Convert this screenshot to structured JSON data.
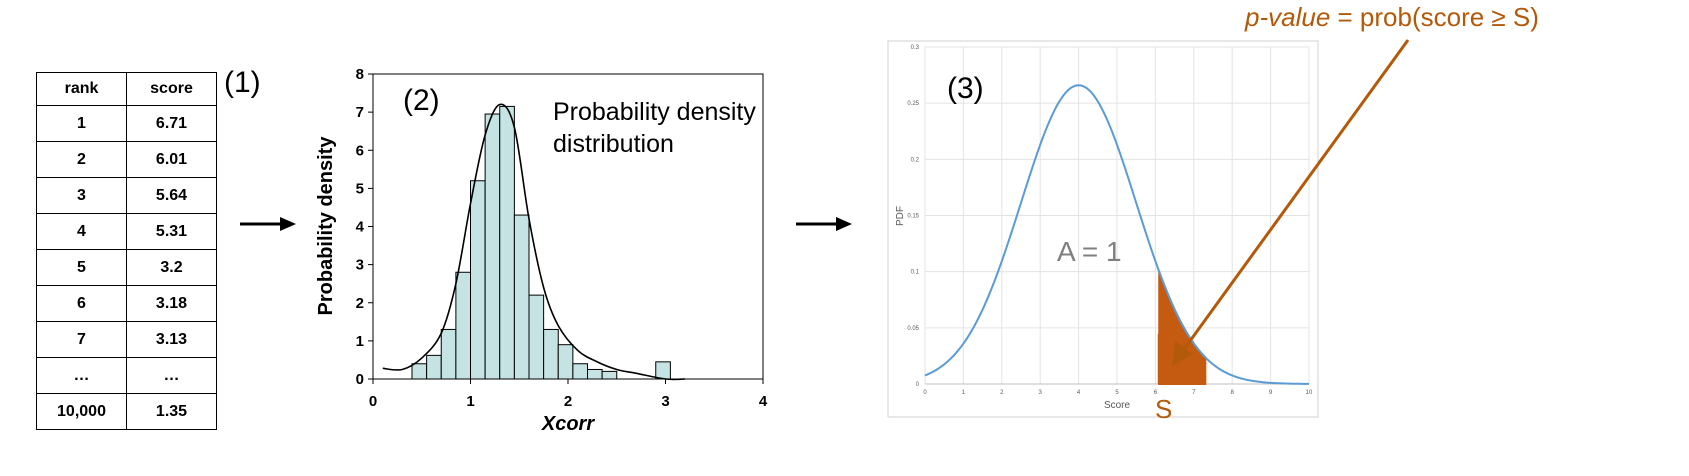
{
  "panel1": {
    "label": "(1)",
    "columns": [
      "rank",
      "score"
    ],
    "rows": [
      [
        "1",
        "6.71"
      ],
      [
        "2",
        "6.01"
      ],
      [
        "3",
        "5.64"
      ],
      [
        "4",
        "5.31"
      ],
      [
        "5",
        "3.2"
      ],
      [
        "6",
        "3.18"
      ],
      [
        "7",
        "3.13"
      ],
      [
        "…",
        "…"
      ],
      [
        "10,000",
        "1.35"
      ]
    ]
  },
  "panel2": {
    "label": "(2)",
    "annotation_line1": "Probability density",
    "annotation_line2": "distribution",
    "chart_data": {
      "type": "bar",
      "ylabel": "Probability density",
      "xlabel": "Xcorr",
      "xlim": [
        0,
        4
      ],
      "ylim": [
        0,
        8
      ],
      "xticks": [
        "0",
        "1",
        "2",
        "3",
        "4"
      ],
      "yticks": [
        "0",
        "1",
        "2",
        "3",
        "4",
        "5",
        "6",
        "7",
        "8"
      ],
      "bin_width": 0.15,
      "bins": [
        {
          "x0": 0.4,
          "y": 0.4
        },
        {
          "x0": 0.55,
          "y": 0.62
        },
        {
          "x0": 0.7,
          "y": 1.3
        },
        {
          "x0": 0.85,
          "y": 2.8
        },
        {
          "x0": 1.0,
          "y": 5.2
        },
        {
          "x0": 1.15,
          "y": 6.95
        },
        {
          "x0": 1.3,
          "y": 7.15
        },
        {
          "x0": 1.45,
          "y": 4.3
        },
        {
          "x0": 1.6,
          "y": 2.2
        },
        {
          "x0": 1.75,
          "y": 1.3
        },
        {
          "x0": 1.9,
          "y": 0.9
        },
        {
          "x0": 2.05,
          "y": 0.4
        },
        {
          "x0": 2.2,
          "y": 0.25
        },
        {
          "x0": 2.35,
          "y": 0.2
        },
        {
          "x0": 2.9,
          "y": 0.45
        }
      ],
      "density_curve": [
        [
          0.1,
          0.28
        ],
        [
          0.3,
          0.25
        ],
        [
          0.5,
          0.55
        ],
        [
          0.7,
          1.2
        ],
        [
          0.85,
          2.5
        ],
        [
          1.0,
          4.6
        ],
        [
          1.15,
          6.4
        ],
        [
          1.3,
          7.2
        ],
        [
          1.45,
          6.6
        ],
        [
          1.6,
          4.2
        ],
        [
          1.75,
          2.4
        ],
        [
          1.9,
          1.4
        ],
        [
          2.1,
          0.75
        ],
        [
          2.3,
          0.45
        ],
        [
          2.5,
          0.25
        ],
        [
          2.7,
          0.15
        ],
        [
          3.0,
          0.0
        ],
        [
          3.2,
          0.0
        ]
      ]
    }
  },
  "panel3": {
    "label": "(3)",
    "area_label": "A = 1",
    "s_label": "S",
    "pvalue_italic": "p-value",
    "pvalue_rest": " = prob(score ≥ S)",
    "chart_data": {
      "type": "area",
      "xlabel": "Score",
      "ylabel": "PDF",
      "xlim": [
        0,
        10
      ],
      "ylim": [
        0,
        0.3
      ],
      "xticks": [
        "0",
        "1",
        "2",
        "3",
        "4",
        "5",
        "6",
        "7",
        "8",
        "9",
        "10"
      ],
      "yticks": [
        "0",
        "0.05",
        "0.1",
        "0.15",
        "0.2",
        "0.25",
        "0.3"
      ],
      "curve": {
        "type": "normal",
        "mean": 4,
        "sd": 1.5
      },
      "shaded_from": 6.1,
      "grid": true
    }
  },
  "colors": {
    "bar_fill": "#c5e3e3",
    "curve_blue": "#5b9bd5",
    "tail_orange": "#c55a11",
    "annotation_brown": "#b35a0a"
  }
}
